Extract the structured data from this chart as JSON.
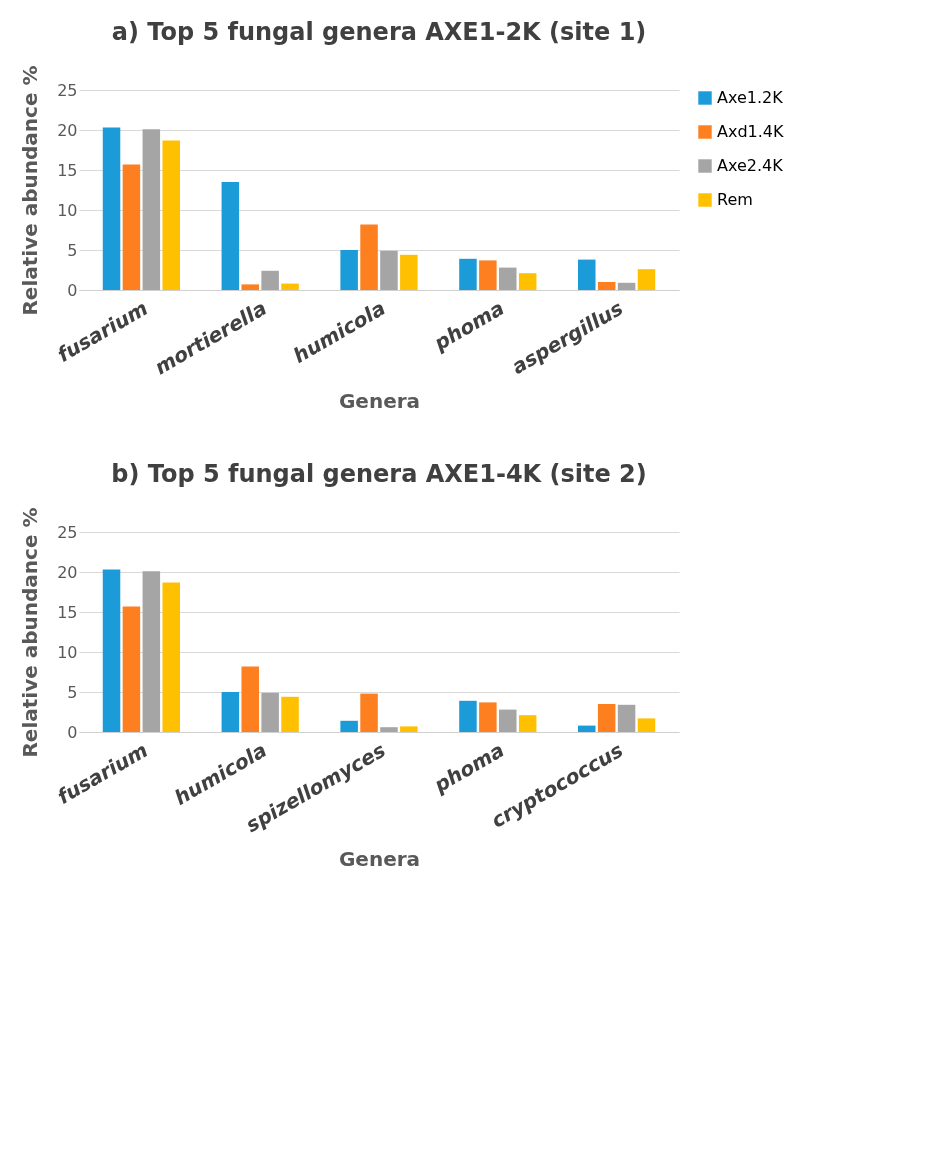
{
  "chart_data": [
    {
      "type": "bar",
      "title": "a) Top 5 fungal genera AXE1-2K (site 1)",
      "xlabel": "Genera",
      "ylabel": "Relative abundance %",
      "categories": [
        "fusarium",
        "mortierella",
        "humicola",
        "phoma",
        "aspergillus"
      ],
      "series": [
        {
          "name": "Axe1.2K",
          "color": "#1b9bd7",
          "values": [
            20.3,
            13.5,
            5.0,
            3.9,
            3.8
          ]
        },
        {
          "name": "Axd1.4K",
          "color": "#fd7f20",
          "values": [
            15.7,
            0.7,
            8.2,
            3.7,
            1.0
          ]
        },
        {
          "name": "Axe2.4K",
          "color": "#a5a5a5",
          "values": [
            20.1,
            2.4,
            4.9,
            2.8,
            0.9
          ]
        },
        {
          "name": "Rem",
          "color": "#ffc000",
          "values": [
            18.7,
            0.8,
            4.4,
            2.1,
            2.6
          ]
        }
      ],
      "ylim": [
        0,
        25
      ],
      "yticks": [
        0,
        5,
        10,
        15,
        20,
        25
      ],
      "grid": "y",
      "legend": "right"
    },
    {
      "type": "bar",
      "title": "b) Top 5 fungal genera AXE1-4K (site 2)",
      "xlabel": "Genera",
      "ylabel": "Relative abundance %",
      "categories": [
        "fusarium",
        "humicola",
        "spizellomyces",
        "phoma",
        "cryptococcus"
      ],
      "series": [
        {
          "name": "Axe1.2K",
          "color": "#1b9bd7",
          "values": [
            20.3,
            5.0,
            1.4,
            3.9,
            0.8
          ]
        },
        {
          "name": "Axd1.4K",
          "color": "#fd7f20",
          "values": [
            15.7,
            8.2,
            4.8,
            3.7,
            3.5
          ]
        },
        {
          "name": "Axe2.4K",
          "color": "#a5a5a5",
          "values": [
            20.1,
            4.9,
            0.6,
            2.8,
            3.4
          ]
        },
        {
          "name": "Rem",
          "color": "#ffc000",
          "values": [
            18.7,
            4.4,
            0.7,
            2.1,
            1.7
          ]
        }
      ],
      "ylim": [
        0,
        25
      ],
      "yticks": [
        0,
        5,
        10,
        15,
        20,
        25
      ],
      "grid": "y",
      "legend": "right"
    }
  ]
}
